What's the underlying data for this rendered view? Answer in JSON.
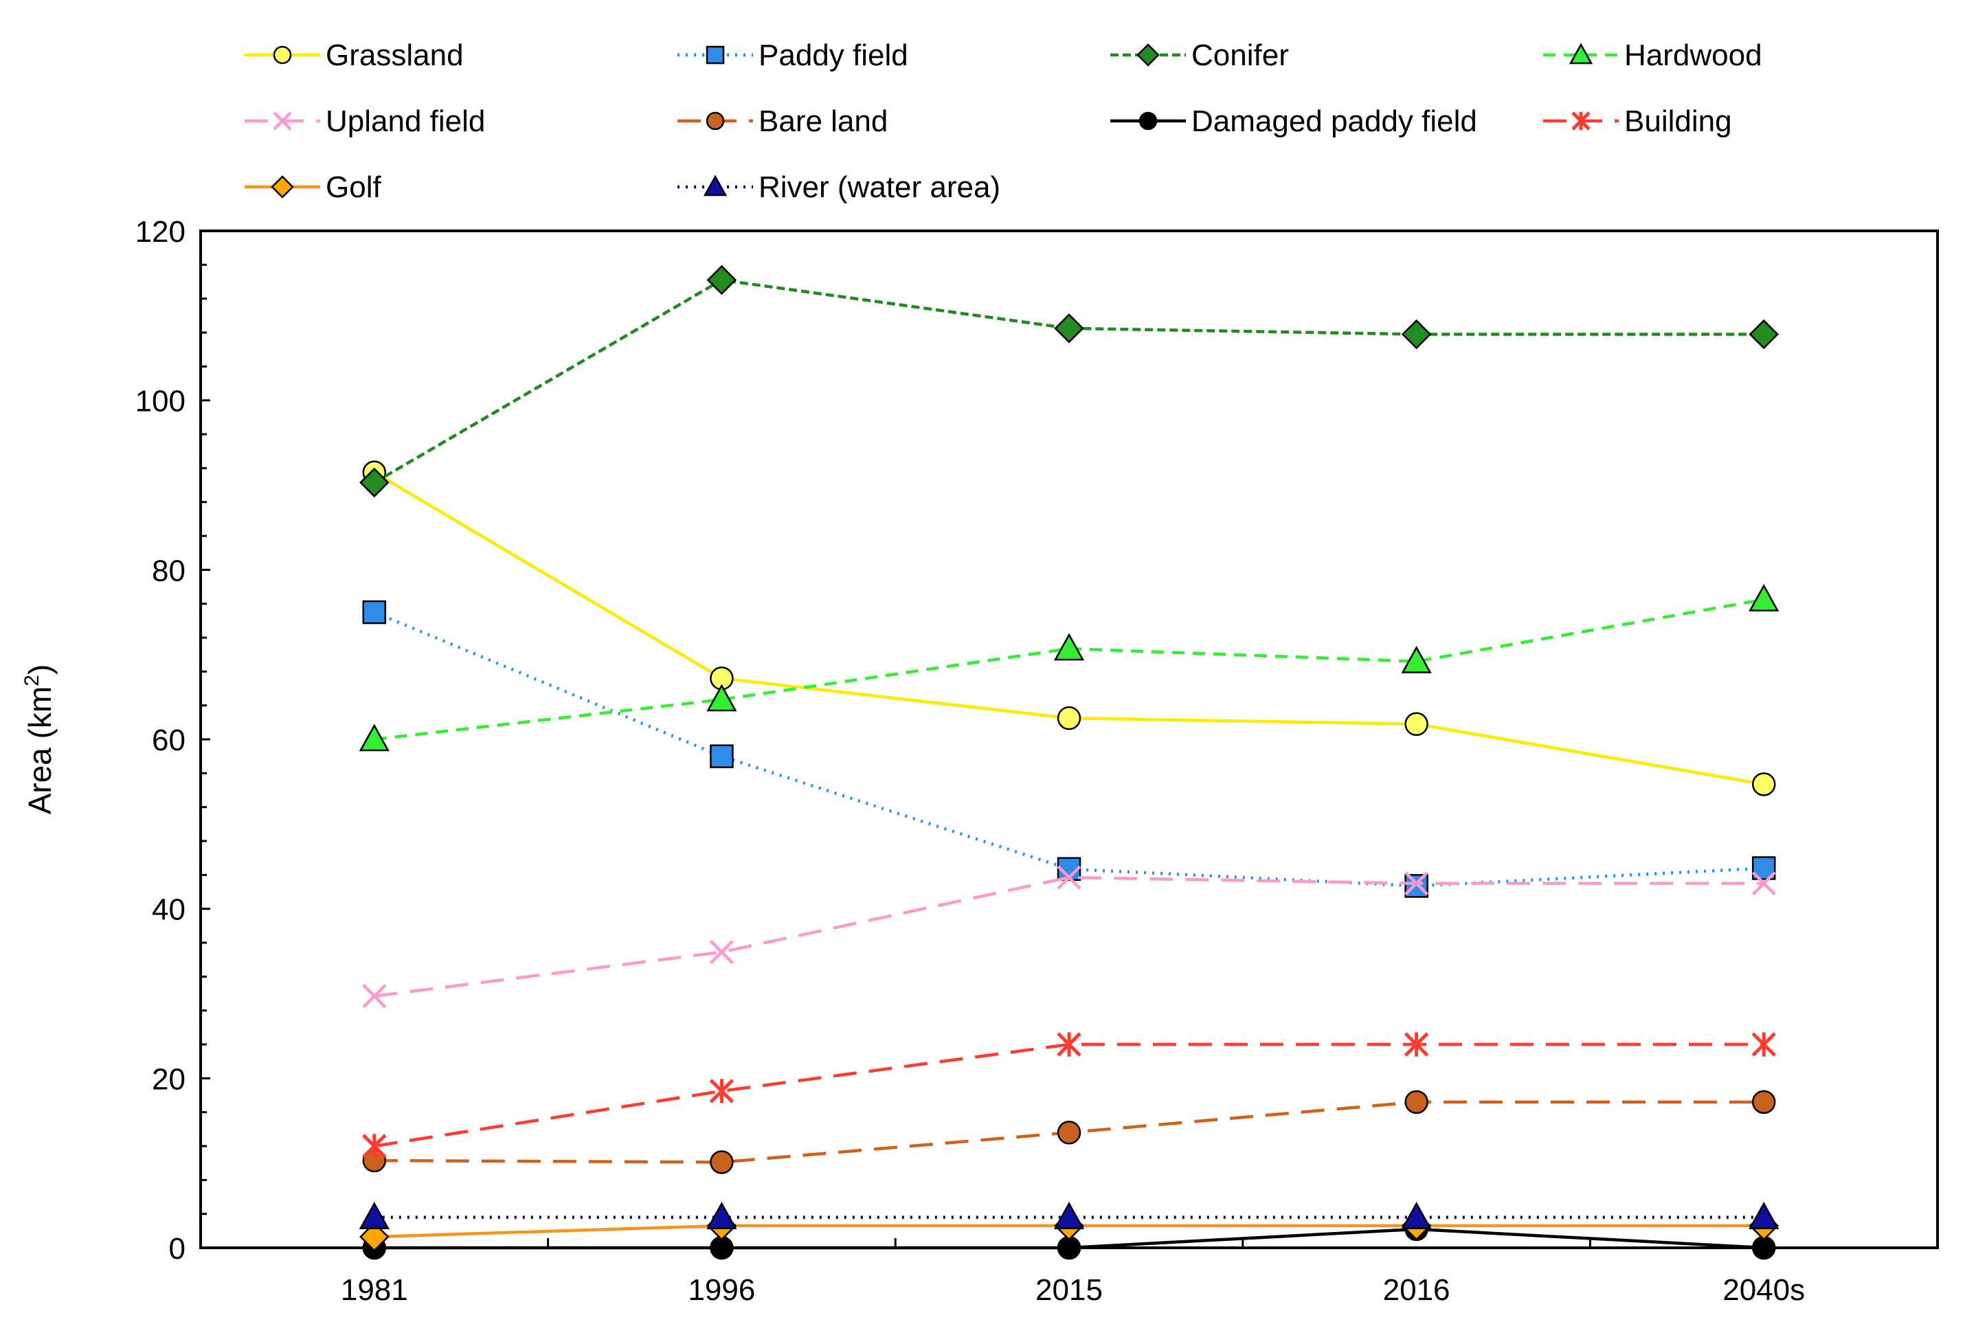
{
  "chart_data": {
    "type": "line",
    "title": "",
    "xlabel": "",
    "ylabel": "Area (km²)",
    "ylabel_base": "Area (km",
    "ylabel_sup": "2",
    "ylabel_close": ")",
    "categories": [
      "1981",
      "1996",
      "2015",
      "2016",
      "2040s"
    ],
    "ylim": [
      0,
      120
    ],
    "yticks": [
      0,
      20,
      40,
      60,
      80,
      100,
      120
    ],
    "legend_position": "top",
    "series": [
      {
        "name": "Grassland",
        "values": [
          91.5,
          67.2,
          62.5,
          61.8,
          54.7
        ],
        "color": "#FFEA00",
        "marker_fill": "#FFFF66",
        "marker": "circle",
        "dash": "solid"
      },
      {
        "name": "Paddy field",
        "values": [
          75.0,
          58.0,
          44.7,
          42.7,
          44.8
        ],
        "color": "#1E90FF",
        "marker_fill": "#2E8BE8",
        "marker": "square",
        "dash": "dot"
      },
      {
        "name": "Conifer",
        "values": [
          90.3,
          114.2,
          108.5,
          107.8,
          107.8
        ],
        "color": "#1E8B1E",
        "marker_fill": "#228B22",
        "marker": "diamond",
        "dash": "shortdash"
      },
      {
        "name": "Hardwood",
        "values": [
          60.0,
          64.7,
          70.7,
          69.2,
          76.5
        ],
        "color": "#33EE33",
        "marker_fill": "#33EE33",
        "marker": "triangle",
        "dash": "dash"
      },
      {
        "name": "Upland field",
        "values": [
          29.7,
          34.9,
          43.7,
          43.0,
          43.0
        ],
        "color": "#FF99CC",
        "marker_fill": "#FF99CC",
        "marker": "x",
        "dash": "longdash"
      },
      {
        "name": "Bare land",
        "values": [
          10.3,
          10.1,
          13.6,
          17.2,
          17.2
        ],
        "color": "#D2601A",
        "marker_fill": "#C8621E",
        "marker": "circle",
        "dash": "longdash"
      },
      {
        "name": "Damaged paddy field",
        "values": [
          0.0,
          0.0,
          0.0,
          2.2,
          0.0
        ],
        "color": "#000000",
        "marker_fill": "#000000",
        "marker": "circle",
        "dash": "solid"
      },
      {
        "name": "Building",
        "values": [
          12.0,
          18.5,
          24.0,
          24.0,
          24.0
        ],
        "color": "#FF3B2F",
        "marker_fill": "#FF3B2F",
        "marker": "star",
        "dash": "longdash"
      },
      {
        "name": "Golf",
        "values": [
          1.3,
          2.6,
          2.6,
          2.6,
          2.6
        ],
        "color": "#F7941D",
        "marker_fill": "#FFA500",
        "marker": "diamond",
        "dash": "solid"
      },
      {
        "name": "River (water area)",
        "values": [
          3.6,
          3.6,
          3.6,
          3.6,
          3.6
        ],
        "color": "#00008B",
        "marker_fill": "#1010A0",
        "marker": "triangle",
        "dash": "dot"
      }
    ]
  }
}
